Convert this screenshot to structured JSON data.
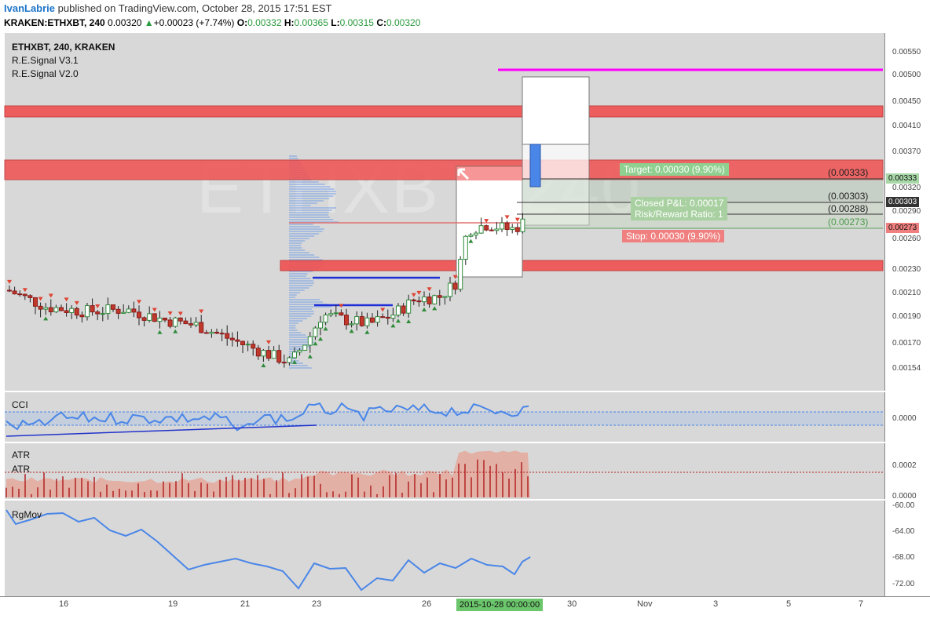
{
  "header": {
    "author": "IvanLabrie",
    "published": "published on TradingView.com, October 28, 2015 17:51 EST",
    "symbol": "KRAKEN:ETHXBT, 240",
    "last": "0.00320",
    "change_arrow": "▲",
    "change": "+0.00023 (+7.74%)",
    "o_label": "O:",
    "o": "0.00332",
    "h_label": "H:",
    "h": "0.00365",
    "l_label": "L:",
    "l": "0.00315",
    "c_label": "C:",
    "c": "0.00320"
  },
  "legend": {
    "symbol": "ETHXBT, 240, KRAKEN",
    "study1": "R.E.Signal V3.1",
    "study2": "R.E.Signal V2.0"
  },
  "watermark": "ETHXBT, 240",
  "price_axis": [
    "0.00550",
    "0.00500",
    "0.00450",
    "0.00410",
    "0.00370",
    "0.00320",
    "0.00290",
    "0.00260",
    "0.00230",
    "0.00210",
    "0.00190",
    "0.00170",
    "0.00154"
  ],
  "price_tags": {
    "t1": "0.00333",
    "t2": "0.00303",
    "t3": "0.00273"
  },
  "position": {
    "target": "Target: 0.00030 (9.90%)",
    "closed_pl": "Closed P&L: 0.00017",
    "rr": "Risk/Reward Ratio: 1",
    "stop": "Stop: 0.00030 (9.90%)",
    "fib1": "(0.00333)",
    "fib2": "(0.00303)",
    "fib3": "(0.00288)",
    "fib4": "(0.00273)"
  },
  "indicators": {
    "cci": {
      "label": "CCI",
      "axis": [
        "0.0000"
      ]
    },
    "atr": {
      "label1": "ATR",
      "label2": "ATR",
      "axis": [
        "0.0002",
        "0.0000"
      ]
    },
    "rgmov": {
      "label": "RgMov",
      "axis": [
        "-60.00",
        "-64.00",
        "-68.00",
        "-72.00"
      ]
    }
  },
  "time_axis": [
    "16",
    "19",
    "21",
    "23",
    "26",
    "30",
    "Nov",
    "3",
    "5",
    "7"
  ],
  "time_highlight": "2015-10-28 00:00:00",
  "colors": {
    "pane_bg": "#d8d8d8",
    "zone_red": "#f05050",
    "magenta": "#ff00ff",
    "bull": "#2e8b3a",
    "bear": "#c0392b",
    "cci_line": "#4a86e8",
    "atr_red": "#b22222",
    "highlight_green": "#6cc66c"
  }
}
